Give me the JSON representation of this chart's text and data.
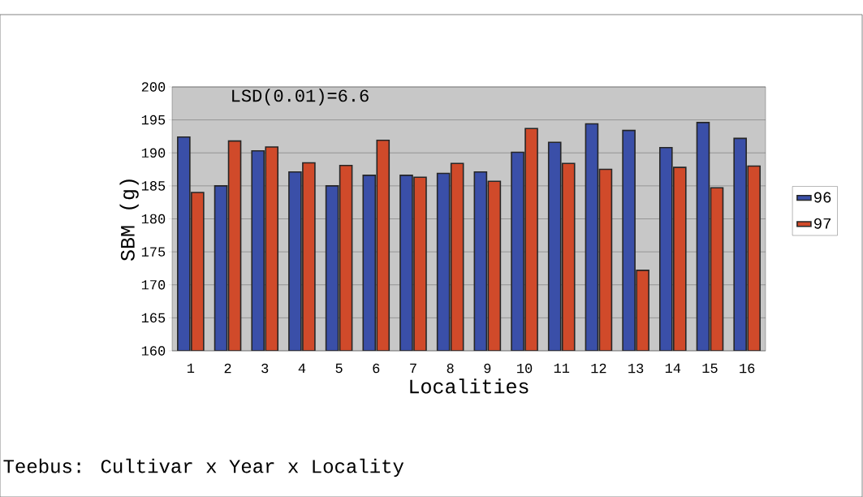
{
  "chart_data": {
    "type": "bar",
    "xlabel": "Localities",
    "ylabel": "SBM (g)",
    "categories": [
      "1",
      "2",
      "3",
      "4",
      "5",
      "6",
      "7",
      "8",
      "9",
      "10",
      "11",
      "12",
      "13",
      "14",
      "15",
      "16"
    ],
    "series": [
      {
        "name": "96",
        "color": "#3a4fa8",
        "values": [
          192.4,
          185.0,
          190.3,
          187.1,
          185.0,
          186.6,
          186.6,
          186.9,
          187.1,
          190.1,
          191.6,
          194.4,
          193.4,
          190.8,
          194.6,
          192.2
        ]
      },
      {
        "name": "97",
        "color": "#d04a2a",
        "values": [
          184.0,
          191.8,
          190.9,
          188.5,
          188.1,
          191.9,
          186.3,
          188.4,
          185.7,
          193.7,
          188.4,
          187.5,
          172.2,
          187.8,
          184.7,
          188.0
        ]
      }
    ],
    "ylim": [
      160,
      200
    ],
    "yticks": [
      160,
      165,
      170,
      175,
      180,
      185,
      190,
      195,
      200
    ],
    "grid": "y",
    "legend": "right",
    "annotations": [
      "LSD(0.01)=6.6",
      "Teebus: Cultivar x Year x Locality"
    ]
  }
}
